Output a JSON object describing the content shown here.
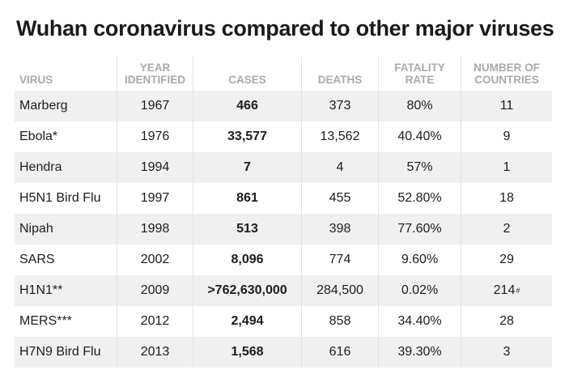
{
  "title": "Wuhan coronavirus compared to other major viruses",
  "headers": {
    "virus": "VIRUS",
    "year_line1": "YEAR",
    "year_line2": "IDENTIFIED",
    "cases": "CASES",
    "deaths": "DEATHS",
    "fatality_line1": "FATALITY",
    "fatality_line2": "RATE",
    "countries_line1": "NUMBER OF",
    "countries_line2": "COUNTRIES"
  },
  "rows": [
    {
      "virus": "Marberg",
      "year": "1967",
      "cases": "466",
      "deaths": "373",
      "fatality": "80%",
      "countries": "11",
      "countries_note": ""
    },
    {
      "virus": "Ebola*",
      "year": "1976",
      "cases": "33,577",
      "deaths": "13,562",
      "fatality": "40.40%",
      "countries": "9",
      "countries_note": ""
    },
    {
      "virus": "Hendra",
      "year": "1994",
      "cases": "7",
      "deaths": "4",
      "fatality": "57%",
      "countries": "1",
      "countries_note": ""
    },
    {
      "virus": "H5N1 Bird Flu",
      "year": "1997",
      "cases": "861",
      "deaths": "455",
      "fatality": "52.80%",
      "countries": "18",
      "countries_note": ""
    },
    {
      "virus": "Nipah",
      "year": "1998",
      "cases": "513",
      "deaths": "398",
      "fatality": "77.60%",
      "countries": "2",
      "countries_note": ""
    },
    {
      "virus": "SARS",
      "year": "2002",
      "cases": "8,096",
      "deaths": "774",
      "fatality": "9.60%",
      "countries": "29",
      "countries_note": ""
    },
    {
      "virus": "H1N1**",
      "year": "2009",
      "cases": ">762,630,000",
      "deaths": "284,500",
      "fatality": "0.02%",
      "countries": "214",
      "countries_note": "#"
    },
    {
      "virus": "MERS***",
      "year": "2012",
      "cases": "2,494",
      "deaths": "858",
      "fatality": "34.40%",
      "countries": "28",
      "countries_note": ""
    },
    {
      "virus": "H7N9 Bird Flu",
      "year": "2013",
      "cases": "1,568",
      "deaths": "616",
      "fatality": "39.30%",
      "countries": "3",
      "countries_note": ""
    }
  ],
  "colors": {
    "header_text": "#a9a9a9",
    "row_shade": "#f0f0f0",
    "text": "#1c1c1c"
  }
}
